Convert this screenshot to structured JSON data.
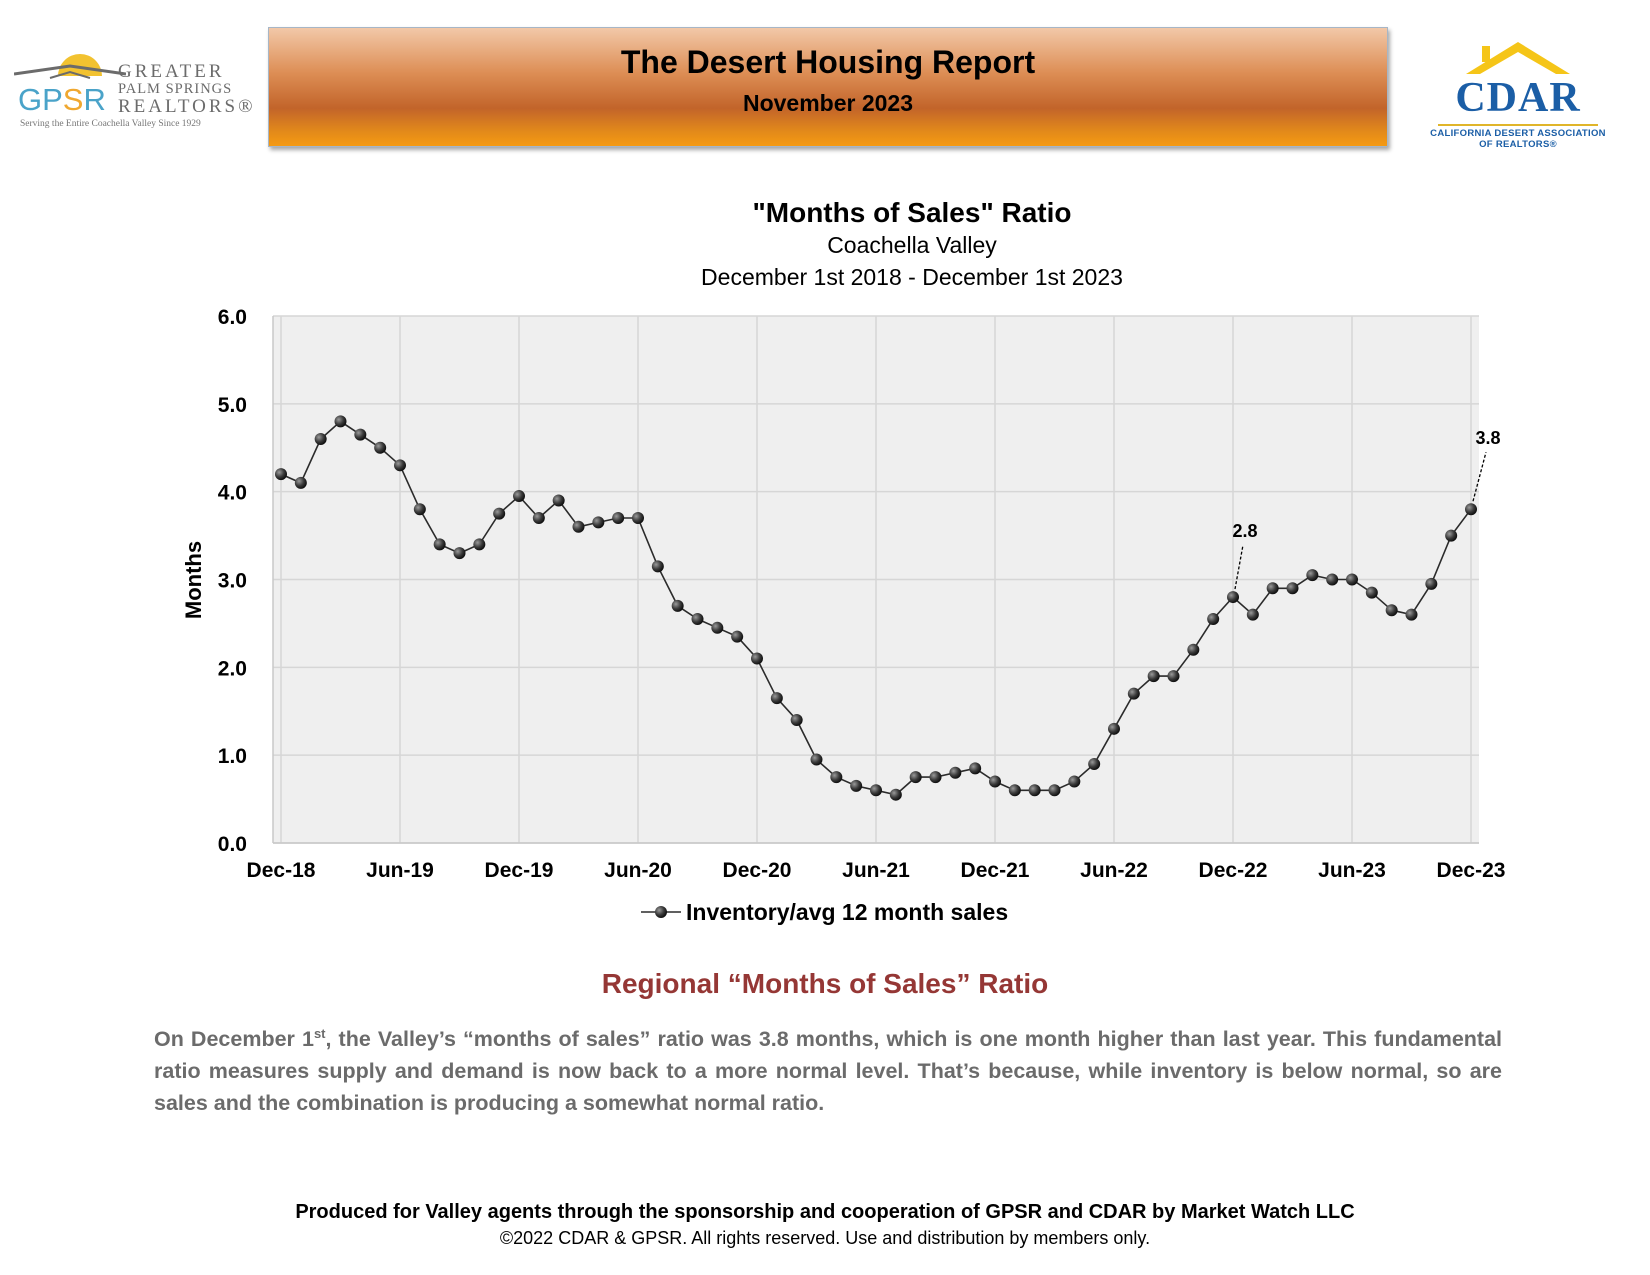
{
  "header": {
    "gpsr_letters_a": "GP",
    "gpsr_letters_b": "S",
    "gpsr_letters_c": "R",
    "gpsr_word1": "GREATER",
    "gpsr_word2": "PALM SPRINGS",
    "gpsr_word3": "REALTORS®",
    "gpsr_tagline": "Serving the Entire Coachella Valley Since 1929",
    "report_title": "The Desert Housing Report",
    "report_month": "November 2023",
    "cdar_name": "CDAR",
    "cdar_sub1": "CALIFORNIA DESERT ASSOCIATION",
    "cdar_sub2": "OF REALTORS®"
  },
  "chart_data": {
    "type": "line",
    "title": "\"Months of Sales\" Ratio",
    "subtitle": "Coachella Valley",
    "subtitle2": "December 1st 2018 - December 1st 2023",
    "ylabel": "Months",
    "xlabel": "",
    "ylim": [
      0,
      6
    ],
    "yticks": [
      "0.0",
      "1.0",
      "2.0",
      "3.0",
      "4.0",
      "5.0",
      "6.0"
    ],
    "xtick_labels": [
      "Dec-18",
      "Jun-19",
      "Dec-19",
      "Jun-20",
      "Dec-20",
      "Jun-21",
      "Dec-21",
      "Jun-22",
      "Dec-22",
      "Jun-23",
      "Dec-23"
    ],
    "grid": true,
    "legend_position": "bottom",
    "series": [
      {
        "name": "Inventory/avg 12 month sales",
        "color": "#2b2b2b",
        "x": [
          "Dec-18",
          "Jan-19",
          "Feb-19",
          "Mar-19",
          "Apr-19",
          "May-19",
          "Jun-19",
          "Jul-19",
          "Aug-19",
          "Sep-19",
          "Oct-19",
          "Nov-19",
          "Dec-19",
          "Jan-20",
          "Feb-20",
          "Mar-20",
          "Apr-20",
          "May-20",
          "Jun-20",
          "Jul-20",
          "Aug-20",
          "Sep-20",
          "Oct-20",
          "Nov-20",
          "Dec-20",
          "Jan-21",
          "Feb-21",
          "Mar-21",
          "Apr-21",
          "May-21",
          "Jun-21",
          "Jul-21",
          "Aug-21",
          "Sep-21",
          "Oct-21",
          "Nov-21",
          "Dec-21",
          "Jan-22",
          "Feb-22",
          "Mar-22",
          "Apr-22",
          "May-22",
          "Jun-22",
          "Jul-22",
          "Aug-22",
          "Sep-22",
          "Oct-22",
          "Nov-22",
          "Dec-22",
          "Jan-23",
          "Feb-23",
          "Mar-23",
          "Apr-23",
          "May-23",
          "Jun-23",
          "Jul-23",
          "Aug-23",
          "Sep-23",
          "Oct-23",
          "Nov-23",
          "Dec-23"
        ],
        "values": [
          4.2,
          4.1,
          4.6,
          4.8,
          4.65,
          4.5,
          4.3,
          3.8,
          3.4,
          3.3,
          3.4,
          3.75,
          3.95,
          3.7,
          3.9,
          3.6,
          3.65,
          3.7,
          3.7,
          3.15,
          2.7,
          2.55,
          2.45,
          2.35,
          2.1,
          1.65,
          1.4,
          0.95,
          0.75,
          0.65,
          0.6,
          0.55,
          0.75,
          0.75,
          0.8,
          0.85,
          0.7,
          0.6,
          0.6,
          0.6,
          0.7,
          0.9,
          1.3,
          1.7,
          1.9,
          1.9,
          2.2,
          2.55,
          2.8,
          2.6,
          2.9,
          2.9,
          3.05,
          3.0,
          3.0,
          2.85,
          2.65,
          2.6,
          2.95,
          3.5,
          3.8
        ]
      }
    ],
    "annotations": [
      {
        "x": "Dec-22",
        "label": "2.8"
      },
      {
        "x": "Dec-23",
        "label": "3.8"
      }
    ]
  },
  "body": {
    "section_heading": "Regional “Months of Sales” Ratio",
    "para_start": "On December 1",
    "para_sup": "st",
    "para_rest": ", the Valley’s “months of sales” ratio was 3.8 months, which is one month higher than last year. This fundamental ratio measures supply and demand is now back to a more normal level. That’s because, while inventory is below normal, so are sales and the combination is producing a somewhat normal ratio."
  },
  "footer": {
    "line1": "Produced for Valley agents through the sponsorship and cooperation of GPSR and CDAR by Market Watch LLC",
    "line2": "©2022 CDAR & GPSR.  All rights reserved.  Use and distribution by members only."
  }
}
